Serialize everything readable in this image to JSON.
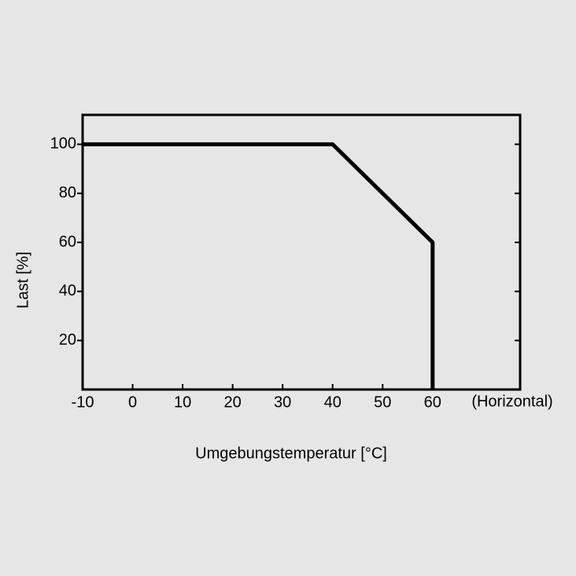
{
  "chart_data": {
    "type": "line",
    "x": [
      -10,
      40,
      60,
      60
    ],
    "series": [
      {
        "name": "Last",
        "color": "#000000",
        "values": [
          100,
          100,
          60,
          0
        ]
      }
    ],
    "xlim": [
      -10,
      77.5
    ],
    "ylim": [
      0,
      112
    ],
    "xticks": [
      -10,
      0,
      10,
      20,
      30,
      40,
      50,
      60
    ],
    "yticks": [
      20,
      40,
      60,
      80,
      100
    ],
    "x_annotation": "(Horizontal)",
    "xlabel": "Umgebungstemperatur [°C]",
    "ylabel": "Last [%]"
  }
}
